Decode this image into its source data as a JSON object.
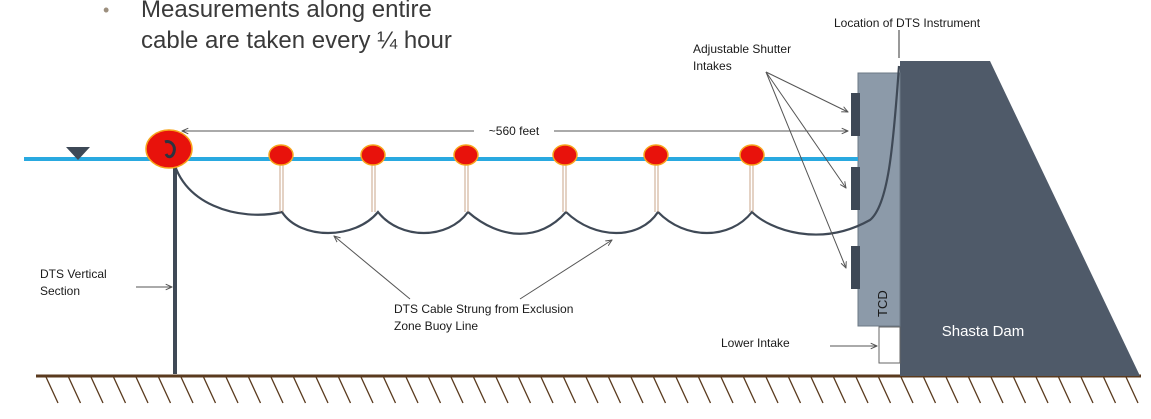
{
  "bullet": {
    "line1": "Measurements along entire",
    "line2": "cable are taken every ¼ hour"
  },
  "labels": {
    "location": "Location of DTS Instrument",
    "shutter_line1": "Adjustable Shutter",
    "shutter_line2": "Intakes",
    "distance": "~560 feet",
    "vertical_line1": "DTS Vertical",
    "vertical_line2": "Section",
    "cable_line1": "DTS Cable Strung from Exclusion",
    "cable_line2": "Zone Buoy Line",
    "lower_intake": "Lower Intake",
    "tcd": "TCD",
    "dam": "Shasta Dam"
  },
  "colors": {
    "water": "#29a9e0",
    "dam": "#4f5a69",
    "tcd": "#8c9aa9",
    "buoy": "#e8120c",
    "buoy_ring": "#f7a51c",
    "cable": "#3f4956",
    "ground": "#5a3a1e"
  }
}
